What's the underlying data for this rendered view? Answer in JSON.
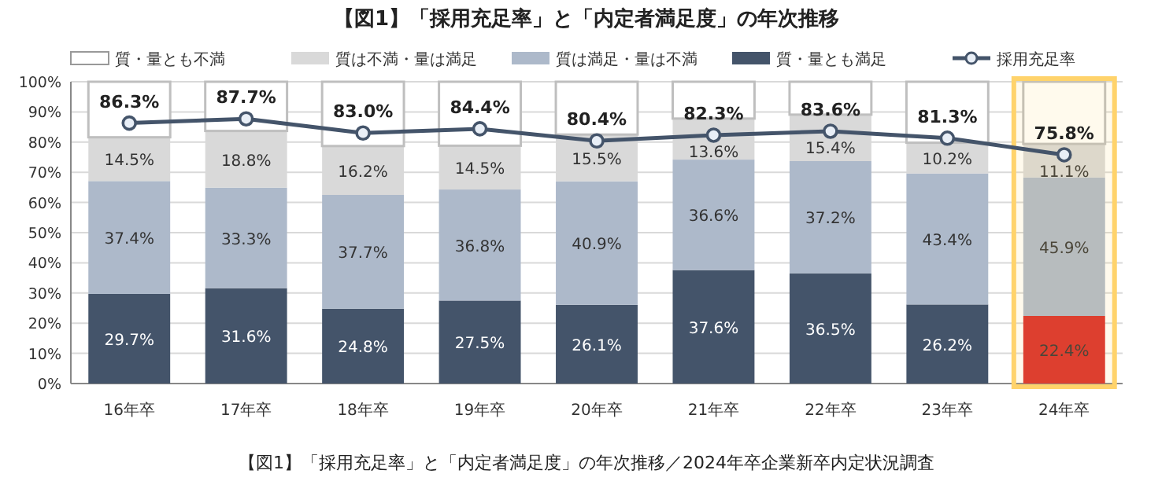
{
  "chart_data": {
    "type": "bar",
    "stacked": true,
    "title": "【図1】「採用充足率」と「内定者満足度」の年次推移",
    "annotations": [
      "【図1】「採用充足率」と「内定者満足度」の年次推移／2024年卒企業新卒内定状況調査"
    ],
    "categories": [
      "16年卒",
      "17年卒",
      "18年卒",
      "19年卒",
      "20年卒",
      "21年卒",
      "22年卒",
      "23年卒",
      "24年卒"
    ],
    "series": [
      {
        "name": "質・量とも満足",
        "color": "#44546a",
        "colors": [
          "#44546a",
          "#44546a",
          "#44546a",
          "#44546a",
          "#44546a",
          "#44546a",
          "#44546a",
          "#44546a",
          "#d92b27"
        ],
        "values": [
          29.7,
          31.6,
          24.8,
          27.5,
          26.1,
          37.6,
          36.5,
          26.2,
          22.4
        ],
        "value_labels": [
          "29.7%",
          "31.6%",
          "24.8%",
          "27.5%",
          "26.1%",
          "37.6%",
          "36.5%",
          "26.2%",
          "22.4%"
        ]
      },
      {
        "name": "質は満足・量は不満",
        "color": "#adb9ca",
        "values": [
          37.4,
          33.3,
          37.7,
          36.8,
          40.9,
          36.6,
          37.2,
          43.4,
          45.9
        ],
        "value_labels": [
          "37.4%",
          "33.3%",
          "37.7%",
          "36.8%",
          "40.9%",
          "36.6%",
          "37.2%",
          "43.4%",
          "45.9%"
        ]
      },
      {
        "name": "質は不満・量は満足",
        "color": "#d9d9d9",
        "values": [
          14.5,
          18.8,
          16.2,
          14.5,
          15.5,
          13.6,
          15.4,
          10.2,
          11.1
        ],
        "value_labels": [
          "14.5%",
          "18.8%",
          "16.2%",
          "14.5%",
          "15.5%",
          "13.6%",
          "15.4%",
          "10.2%",
          "11.1%"
        ]
      },
      {
        "name": "質・量とも不満",
        "color": "#ffffff",
        "values": [
          18.4,
          16.3,
          21.3,
          21.2,
          17.5,
          12.2,
          10.9,
          20.2,
          20.6
        ]
      },
      {
        "name": "採用充足率",
        "type": "line",
        "color": "#44546a",
        "marker": "circle",
        "values": [
          86.3,
          87.7,
          83.0,
          84.4,
          80.4,
          82.3,
          83.6,
          81.3,
          75.8
        ],
        "value_labels": [
          "86.3%",
          "87.7%",
          "83.0%",
          "84.4%",
          "80.4%",
          "82.3%",
          "83.6%",
          "81.3%",
          "75.8%"
        ]
      }
    ],
    "ylim": [
      0,
      100
    ],
    "yticks": [
      {
        "value": 0,
        "label": "0%"
      },
      {
        "value": 10,
        "label": "10%"
      },
      {
        "value": 20,
        "label": "20%"
      },
      {
        "value": 30,
        "label": "30%"
      },
      {
        "value": 40,
        "label": "40%"
      },
      {
        "value": 50,
        "label": "50%"
      },
      {
        "value": 60,
        "label": "60%"
      },
      {
        "value": 70,
        "label": "70%"
      },
      {
        "value": 80,
        "label": "80%"
      },
      {
        "value": 90,
        "label": "90%"
      },
      {
        "value": 100,
        "label": "100%"
      }
    ],
    "bands": [
      {
        "axis": "x",
        "from": "24年卒",
        "to": "24年卒",
        "color": "#ffd36b"
      }
    ],
    "grid": "y",
    "legend": "top"
  }
}
